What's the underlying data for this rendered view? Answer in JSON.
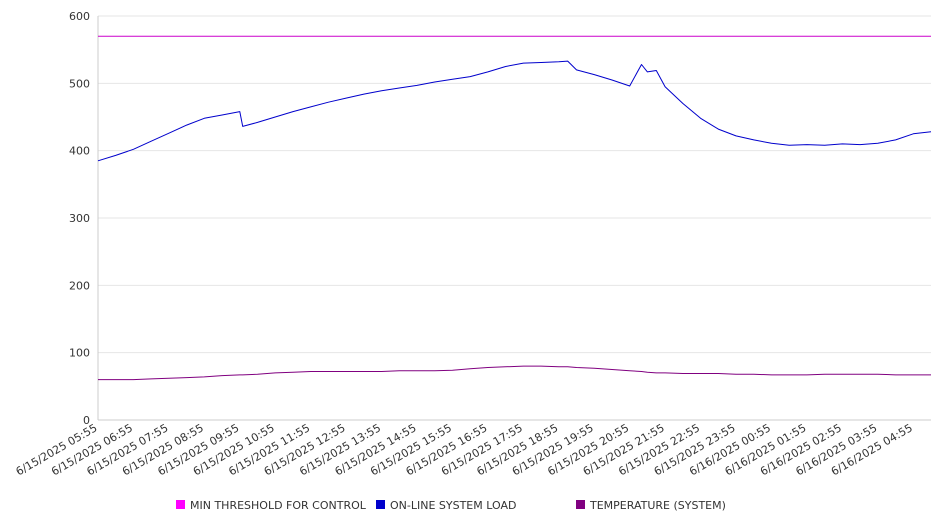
{
  "chart_data": {
    "type": "line",
    "title": "",
    "xlabel": "",
    "ylabel": "",
    "ylim": [
      0,
      600
    ],
    "yticks": [
      0,
      100,
      200,
      300,
      400,
      500,
      600
    ],
    "grid": true,
    "legend_position": "bottom",
    "x_tick_labels": [
      "6/15/2025 05:55",
      "6/15/2025 06:55",
      "6/15/2025 07:55",
      "6/15/2025 08:55",
      "6/15/2025 09:55",
      "6/15/2025 10:55",
      "6/15/2025 11:55",
      "6/15/2025 12:55",
      "6/15/2025 13:55",
      "6/15/2025 14:55",
      "6/15/2025 15:55",
      "6/15/2025 16:55",
      "6/15/2025 17:55",
      "6/15/2025 18:55",
      "6/15/2025 19:55",
      "6/15/2025 20:55",
      "6/15/2025 21:55",
      "6/15/2025 22:55",
      "6/15/2025 23:55",
      "6/16/2025 00:55",
      "6/16/2025 01:55",
      "6/16/2025 02:55",
      "6/16/2025 03:55",
      "6/16/2025 04:55"
    ],
    "x": [
      "6/15/2025 05:55",
      "6/15/2025 06:25",
      "6/15/2025 06:55",
      "6/15/2025 07:25",
      "6/15/2025 07:55",
      "6/15/2025 08:25",
      "6/15/2025 08:55",
      "6/15/2025 09:25",
      "6/15/2025 09:55",
      "6/15/2025 10:00",
      "6/15/2025 10:25",
      "6/15/2025 10:55",
      "6/15/2025 11:25",
      "6/15/2025 11:55",
      "6/15/2025 12:25",
      "6/15/2025 12:55",
      "6/15/2025 13:25",
      "6/15/2025 13:55",
      "6/15/2025 14:25",
      "6/15/2025 14:55",
      "6/15/2025 15:25",
      "6/15/2025 15:55",
      "6/15/2025 16:25",
      "6/15/2025 16:55",
      "6/15/2025 17:25",
      "6/15/2025 17:55",
      "6/15/2025 18:25",
      "6/15/2025 18:55",
      "6/15/2025 19:10",
      "6/15/2025 19:25",
      "6/15/2025 19:55",
      "6/15/2025 20:25",
      "6/15/2025 20:55",
      "6/15/2025 21:15",
      "6/15/2025 21:25",
      "6/15/2025 21:40",
      "6/15/2025 21:55",
      "6/15/2025 22:25",
      "6/15/2025 22:55",
      "6/15/2025 23:25",
      "6/15/2025 23:55",
      "6/16/2025 00:25",
      "6/16/2025 00:55",
      "6/16/2025 01:25",
      "6/16/2025 01:55",
      "6/16/2025 02:25",
      "6/16/2025 02:55",
      "6/16/2025 03:25",
      "6/16/2025 03:55",
      "6/16/2025 04:25",
      "6/16/2025 04:55",
      "6/16/2025 05:25"
    ],
    "series": [
      {
        "name": "MIN THRESHOLD FOR CONTROL",
        "color": "#cc00cc",
        "values": [
          570,
          570,
          570,
          570,
          570,
          570,
          570,
          570,
          570,
          570,
          570,
          570,
          570,
          570,
          570,
          570,
          570,
          570,
          570,
          570,
          570,
          570,
          570,
          570,
          570,
          570,
          570,
          570,
          570,
          570,
          570,
          570,
          570,
          570,
          570,
          570,
          570,
          570,
          570,
          570,
          570,
          570,
          570,
          570,
          570,
          570,
          570,
          570,
          570,
          570,
          570,
          570
        ]
      },
      {
        "name": "ON-LINE SYSTEM LOAD",
        "color": "#0000cc",
        "values": [
          385,
          393,
          402,
          414,
          426,
          438,
          448,
          453,
          458,
          436,
          442,
          450,
          458,
          465,
          472,
          478,
          484,
          489,
          493,
          497,
          502,
          506,
          510,
          517,
          525,
          530,
          531,
          532,
          533,
          520,
          513,
          505,
          496,
          528,
          517,
          519,
          495,
          470,
          448,
          432,
          422,
          416,
          411,
          408,
          409,
          408,
          410,
          409,
          411,
          416,
          425,
          428
        ]
      },
      {
        "name": "TEMPERATURE (SYSTEM)",
        "color": "#800080",
        "values": [
          60,
          60,
          60,
          61,
          62,
          63,
          64,
          66,
          67,
          67,
          68,
          70,
          71,
          72,
          72,
          72,
          72,
          72,
          73,
          73,
          73,
          74,
          76,
          78,
          79,
          80,
          80,
          79,
          79,
          78,
          77,
          75,
          73,
          72,
          71,
          70,
          70,
          69,
          69,
          69,
          68,
          68,
          67,
          67,
          67,
          68,
          68,
          68,
          68,
          67,
          67,
          67
        ]
      }
    ]
  }
}
